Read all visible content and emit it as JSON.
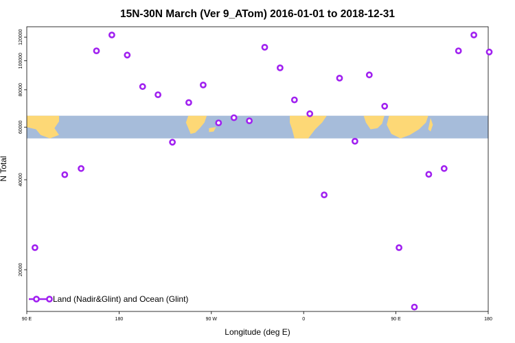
{
  "chart_data": {
    "type": "scatter",
    "title": "15N-30N March (Ver 9_ATom)   2016-01-01 to 2018-12-31",
    "xlabel": "Longitude (deg E)",
    "ylabel": "N Total",
    "x_tick_labels": [
      "90 E",
      "180",
      "90 W",
      "0",
      "90 E",
      "180"
    ],
    "x_tick_values": [
      90,
      180,
      270,
      360,
      450,
      540
    ],
    "xlim": [
      90,
      540
    ],
    "y_scale": "log",
    "y_ticks": [
      20000,
      40000,
      60000,
      80000,
      100000,
      120000
    ],
    "ylim": [
      14500,
      130000
    ],
    "map_band": {
      "y_min": 55000,
      "y_max": 65500,
      "ocean_color": "#A6BCDA",
      "land_color": "#FDD876"
    },
    "series": [
      {
        "name": "Land (Nadir&Glint) and Ocean (Glint)",
        "color": "#A020F0",
        "x": [
          98,
          127,
          143,
          158,
          173,
          188,
          203,
          218,
          232,
          248,
          262,
          277,
          292,
          307,
          322,
          337,
          351,
          366,
          380,
          395,
          410,
          424,
          439,
          453,
          468,
          482,
          497,
          511,
          526,
          541
        ],
        "y": [
          23700,
          41600,
          43600,
          108000,
          122000,
          104500,
          82000,
          77000,
          53400,
          72500,
          83000,
          62000,
          64500,
          63000,
          111000,
          94700,
          74000,
          66500,
          35600,
          87500,
          53800,
          89700,
          70500,
          23700,
          15000,
          41700,
          43600,
          108000,
          122000,
          107000
        ]
      }
    ],
    "legend": {
      "label": "Land (Nadir&Glint) and Ocean (Glint)",
      "position": "bottom-left"
    }
  }
}
